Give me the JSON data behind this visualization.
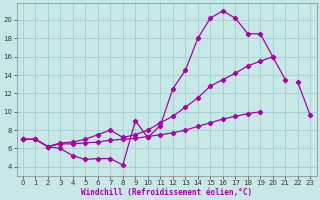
{
  "background_color": "#c8e8e8",
  "grid_color": "#aad4d4",
  "line_color": "#aa00aa",
  "xlabel": "Windchill (Refroidissement éolien,°C)",
  "xlim": [
    -0.5,
    23.5
  ],
  "ylim": [
    3.0,
    21.8
  ],
  "yticks": [
    4,
    6,
    8,
    10,
    12,
    14,
    16,
    18,
    20
  ],
  "xticks": [
    0,
    1,
    2,
    3,
    4,
    5,
    6,
    7,
    8,
    9,
    10,
    11,
    12,
    13,
    14,
    15,
    16,
    17,
    18,
    19,
    20,
    21,
    22,
    23
  ],
  "line1_x": [
    0,
    1,
    2,
    3,
    4,
    5,
    6,
    7,
    8,
    9,
    10,
    11,
    12,
    13,
    14,
    15,
    16,
    17,
    18,
    19,
    20,
    21,
    22,
    23
  ],
  "line1_y": [
    7.0,
    7.0,
    6.2,
    6.0,
    5.2,
    4.8,
    4.9,
    4.9,
    4.2,
    9.0,
    7.2,
    8.5,
    12.5,
    14.5,
    18.0,
    20.2,
    21.0,
    20.2,
    18.5,
    18.5,
    16.0,
    null,
    null,
    null
  ],
  "line2_x": [
    0,
    1,
    2,
    3,
    4,
    5,
    6,
    7,
    8,
    9,
    10,
    11,
    12,
    13,
    14,
    15,
    16,
    17,
    18,
    19,
    20,
    21,
    22,
    23
  ],
  "line2_y": [
    7.0,
    7.0,
    6.2,
    6.6,
    6.7,
    7.0,
    7.5,
    8.0,
    7.2,
    7.5,
    8.0,
    8.8,
    9.5,
    10.5,
    11.5,
    12.8,
    13.5,
    14.2,
    15.0,
    15.5,
    16.0,
    13.5,
    null,
    null
  ],
  "line3_x": [
    0,
    1,
    2,
    3,
    4,
    5,
    6,
    7,
    8,
    9,
    10,
    11,
    12,
    13,
    14,
    15,
    16,
    17,
    18,
    19,
    20,
    21,
    22,
    23
  ],
  "line3_y": [
    7.0,
    7.0,
    6.2,
    6.5,
    6.5,
    6.6,
    6.7,
    6.9,
    7.0,
    7.1,
    7.3,
    7.5,
    7.7,
    8.0,
    8.4,
    8.8,
    9.2,
    9.5,
    9.8,
    10.0,
    null,
    null,
    13.2,
    9.6
  ]
}
